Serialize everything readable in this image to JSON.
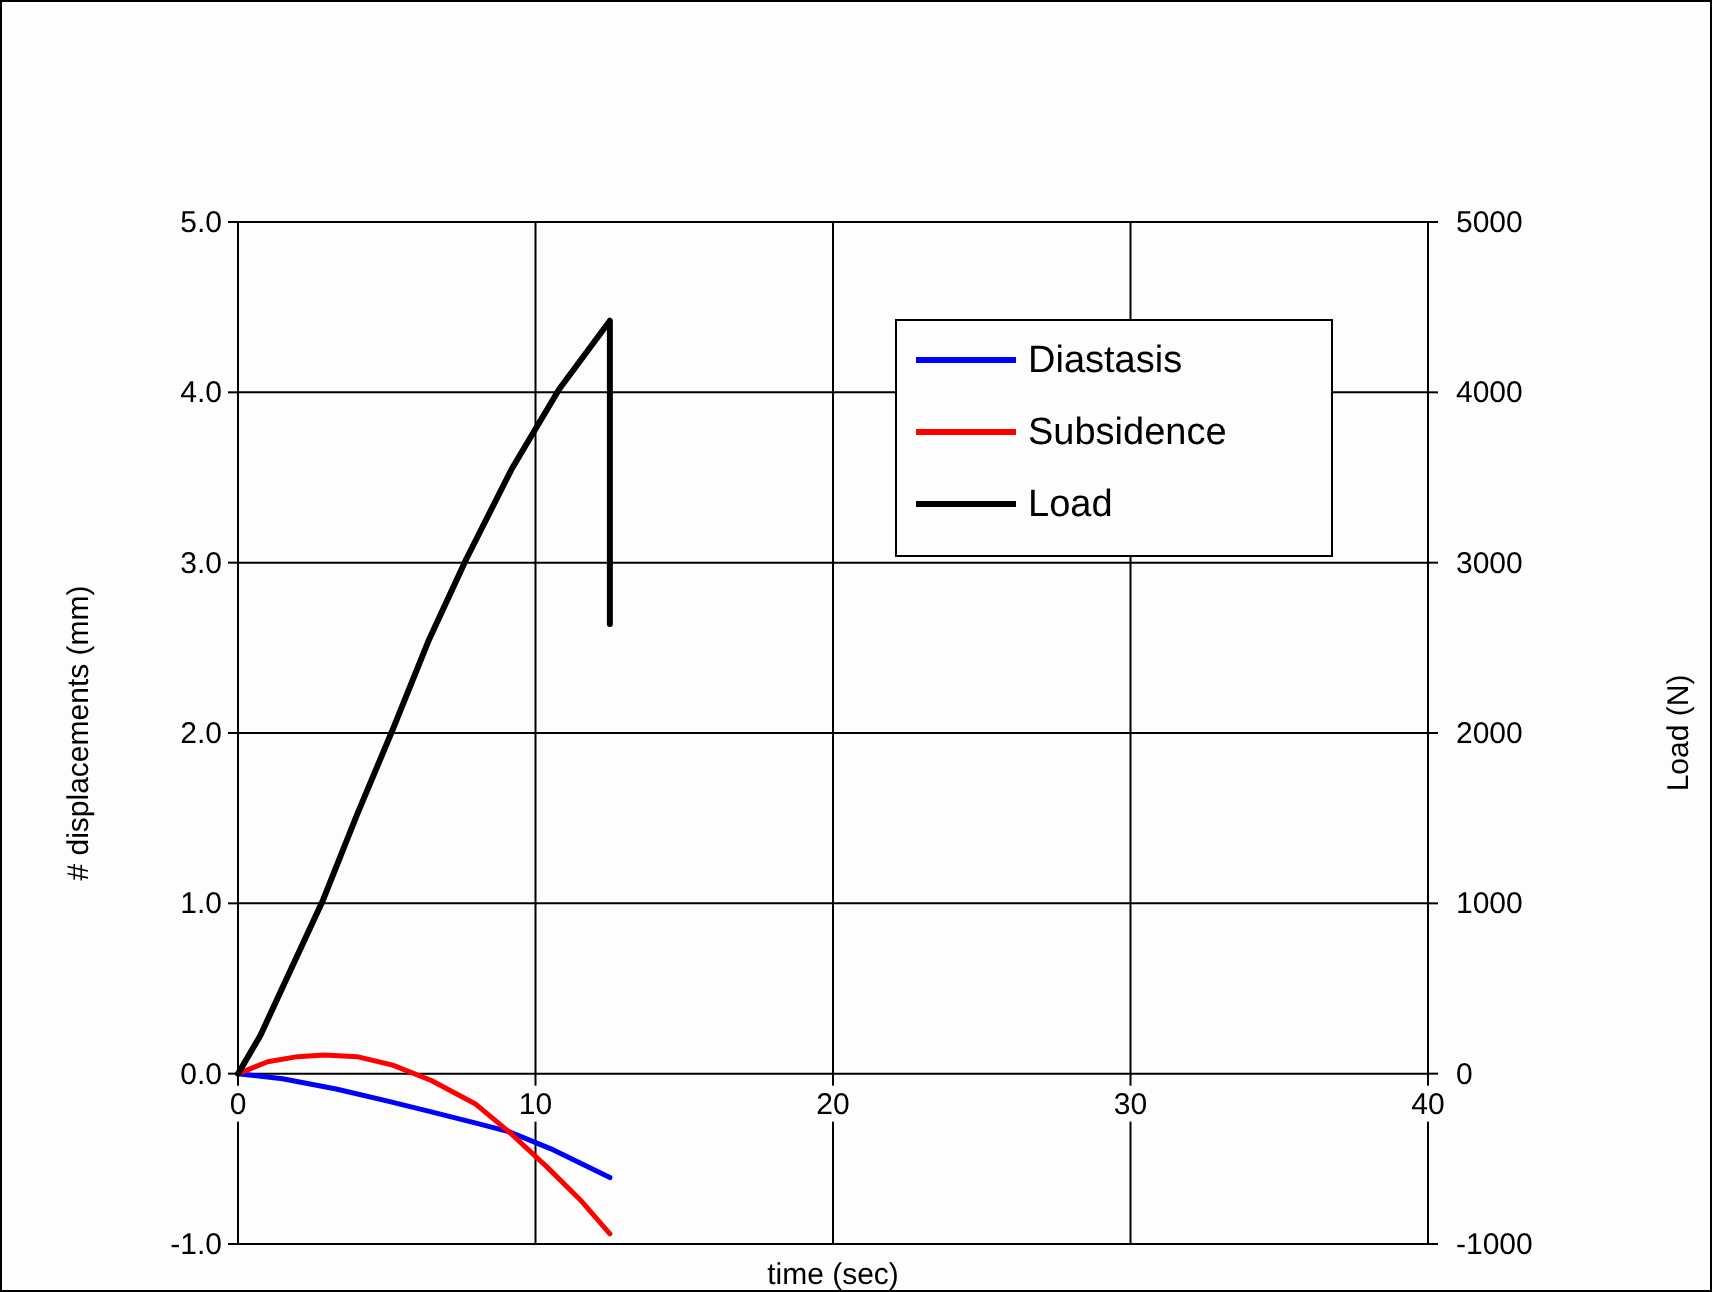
{
  "chart_data": {
    "type": "line",
    "xlabel": "time (sec)",
    "ylabel": "# displacements (mm)",
    "y2label": "Load (N)",
    "xlim": [
      0,
      40
    ],
    "xticks": [
      0,
      10,
      20,
      30,
      40
    ],
    "ylim": [
      -1,
      5
    ],
    "yticks": [
      {
        "value": -1,
        "label": "-1.0"
      },
      {
        "value": 0,
        "label": "0.0"
      },
      {
        "value": 1,
        "label": "1.0"
      },
      {
        "value": 2,
        "label": "2.0"
      },
      {
        "value": 3,
        "label": "3.0"
      },
      {
        "value": 4,
        "label": "4.0"
      },
      {
        "value": 5,
        "label": "5.0"
      }
    ],
    "y2lim": [
      -1000,
      5000
    ],
    "y2ticks": [
      -1000,
      0,
      1000,
      2000,
      3000,
      4000,
      5000
    ],
    "grid": true,
    "legend": "top right",
    "line_style": "solid",
    "series": [
      {
        "name": "Diastasis",
        "color": "#0000ff",
        "x": [
          0,
          1.5,
          3.3,
          5,
          6.4,
          8,
          9.1,
          10.5,
          12.5
        ],
        "values": [
          0,
          -0.03,
          -0.09,
          -0.16,
          -0.22,
          -0.29,
          -0.34,
          -0.44,
          -0.61
        ]
      },
      {
        "name": "Subsidence",
        "color": "#ff0000",
        "x": [
          0,
          1,
          2,
          2.9,
          4,
          5.2,
          6.5,
          8,
          9.1,
          10.4,
          11.5,
          12.5
        ],
        "values": [
          0,
          0.07,
          0.1,
          0.11,
          0.1,
          0.05,
          -0.04,
          -0.18,
          -0.34,
          -0.55,
          -0.74,
          -0.94
        ]
      },
      {
        "name": "Load",
        "color": "#000000",
        "axis": "y2",
        "x": [
          0,
          0.74,
          1.8,
          2.86,
          4,
          5.2,
          6.4,
          7.67,
          9.2,
          10.8,
          12.5,
          12.5
        ],
        "values": [
          0,
          220,
          620,
          1020,
          1520,
          2020,
          2540,
          3020,
          3550,
          4020,
          4420,
          2640
        ]
      }
    ]
  }
}
